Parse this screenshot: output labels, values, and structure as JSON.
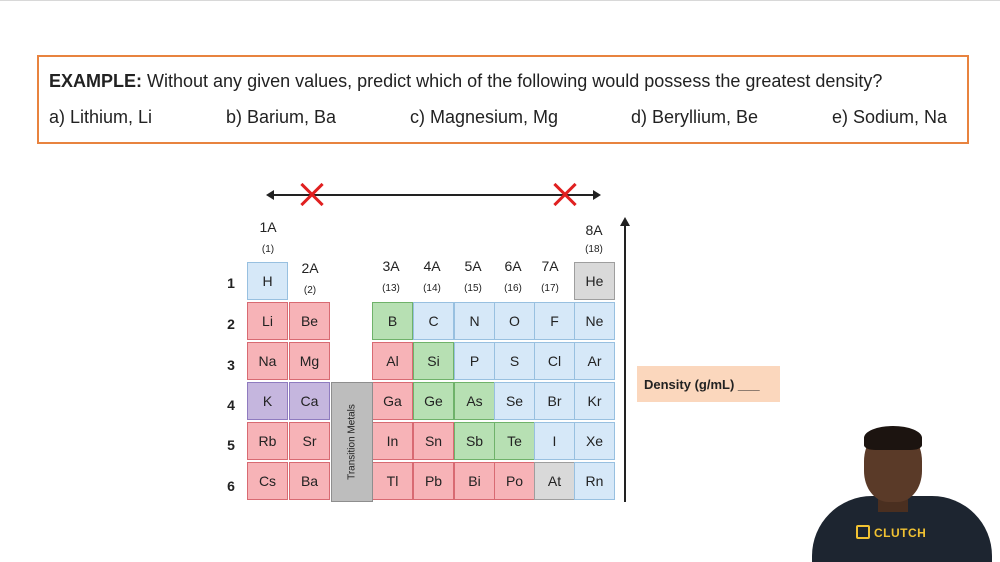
{
  "example": {
    "label": "EXAMPLE:",
    "question": " Without any given values, predict which of the following would possess the greatest density?",
    "options": [
      "a) Lithium, Li",
      "b) Barium, Ba",
      "c) Magnesium, Mg",
      "d) Beryllium, Be",
      "e) Sodium, Na"
    ]
  },
  "groups": [
    {
      "label": "1A",
      "num": "(1)"
    },
    {
      "label": "2A",
      "num": "(2)"
    },
    {
      "label": "3A",
      "num": "(13)"
    },
    {
      "label": "4A",
      "num": "(14)"
    },
    {
      "label": "5A",
      "num": "(15)"
    },
    {
      "label": "6A",
      "num": "(16)"
    },
    {
      "label": "7A",
      "num": "(17)"
    },
    {
      "label": "8A",
      "num": "(18)"
    }
  ],
  "periods": [
    "1",
    "2",
    "3",
    "4",
    "5",
    "6"
  ],
  "elements": {
    "H": "H",
    "He": "He",
    "Li": "Li",
    "Be": "Be",
    "B": "B",
    "C": "C",
    "N": "N",
    "O": "O",
    "F": "F",
    "Ne": "Ne",
    "Na": "Na",
    "Mg": "Mg",
    "Al": "Al",
    "Si": "Si",
    "P": "P",
    "S": "S",
    "Cl": "Cl",
    "Ar": "Ar",
    "K": "K",
    "Ca": "Ca",
    "Ga": "Ga",
    "Ge": "Ge",
    "As": "As",
    "Se": "Se",
    "Br": "Br",
    "Kr": "Kr",
    "Rb": "Rb",
    "Sr": "Sr",
    "In": "In",
    "Sn": "Sn",
    "Sb": "Sb",
    "Te": "Te",
    "I": "I",
    "Xe": "Xe",
    "Cs": "Cs",
    "Ba": "Ba",
    "Tl": "Tl",
    "Pb": "Pb",
    "Bi": "Bi",
    "Po": "Po",
    "At": "At",
    "Rn": "Rn"
  },
  "transition_label": "Transition Metals",
  "density_label": "Density (g/mL)  ___",
  "brand": "CLUTCH",
  "colors": {
    "box_border": "#e8833f",
    "metal": "#f7b3b7",
    "nonmetal": "#d6e8f8",
    "metalloid": "#b7e0b3",
    "alkaline": "#c5b6de",
    "noble_gray": "#d9d9d9",
    "cross": "#e02020"
  }
}
